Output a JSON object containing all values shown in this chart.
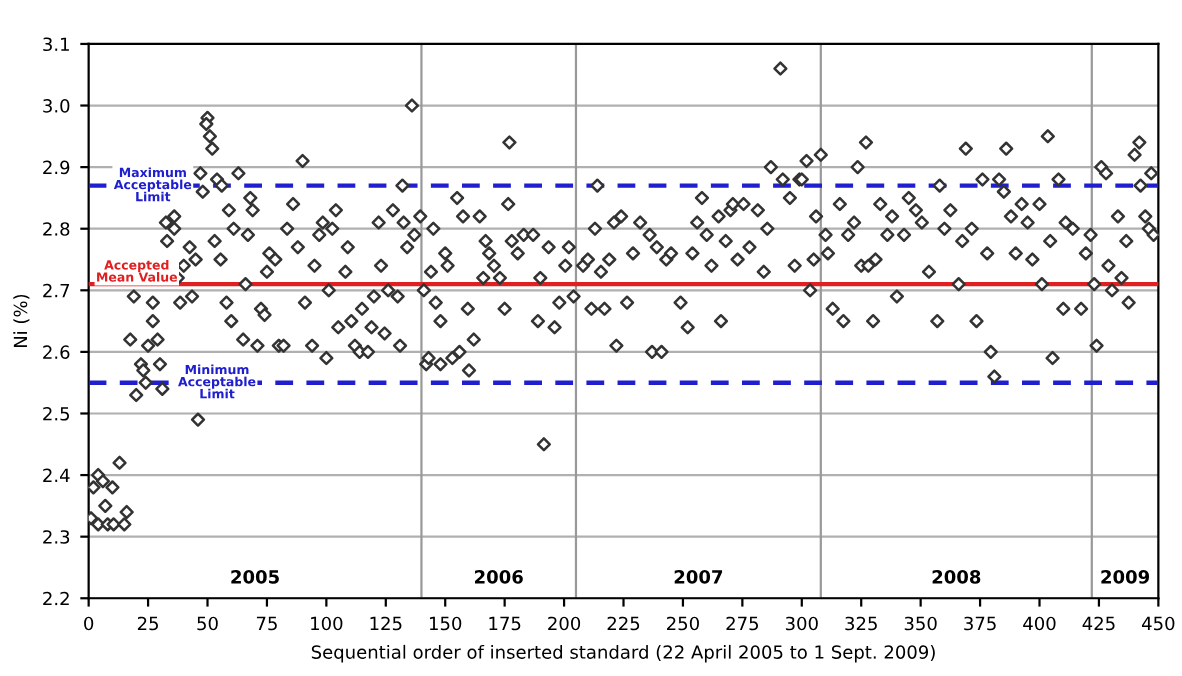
{
  "chart_data": {
    "type": "scatter",
    "xlabel": "Sequential order of inserted standard (22 April 2005 to 1 Sept. 2009)",
    "ylabel": "Ni (%)",
    "xlim": [
      0,
      450
    ],
    "xticks": [
      0,
      25,
      50,
      75,
      100,
      125,
      150,
      175,
      200,
      225,
      250,
      275,
      300,
      325,
      350,
      375,
      400,
      425,
      450
    ],
    "ylim": [
      2.2,
      3.1
    ],
    "yticks": [
      2.2,
      2.3,
      2.4,
      2.5,
      2.6,
      2.7,
      2.8,
      2.9,
      {
        "value": 3.0,
        "label": "3.0"
      },
      3.1
    ],
    "grid": "y",
    "legend": false,
    "marker": "diamond",
    "series": [
      {
        "color": "#333333",
        "x": [
          1,
          2,
          4,
          6,
          4,
          8,
          7,
          10,
          10.5,
          13,
          15,
          16,
          17.5,
          19,
          20,
          22,
          23,
          24,
          25,
          27,
          27,
          29,
          30,
          31,
          32.5,
          33,
          36,
          36,
          37.5,
          38.5,
          40,
          42.5,
          43.5,
          45,
          46,
          47,
          48,
          50,
          49.5,
          51,
          52,
          53,
          54,
          55.5,
          56,
          58,
          59,
          60,
          61,
          63,
          65,
          66,
          67,
          68,
          69,
          71,
          72.5,
          74,
          75,
          76,
          78.5,
          80,
          82,
          83.5,
          86,
          88,
          90,
          91,
          94,
          95,
          97,
          98.5,
          100,
          101,
          102.5,
          104,
          105,
          108,
          109,
          110.5,
          112,
          114,
          115,
          117.5,
          119,
          120,
          122,
          123,
          124.5,
          126,
          128,
          130,
          131,
          132,
          136,
          132.5,
          134,
          137,
          139.5,
          141,
          142,
          143,
          144,
          145,
          146,
          148,
          148,
          150,
          151,
          153,
          155,
          156,
          157.5,
          159.5,
          160,
          162,
          164.5,
          166,
          167,
          168.5,
          170.5,
          173,
          175,
          176.5,
          177,
          178,
          180.5,
          183,
          187,
          189,
          190,
          191.5,
          193.5,
          196,
          198,
          200.5,
          202,
          204,
          208,
          210,
          211.5,
          213,
          214,
          215.5,
          217,
          219,
          221,
          222,
          224,
          226.5,
          229,
          232,
          236,
          237,
          239,
          241,
          243,
          245,
          249,
          252,
          254,
          256,
          258,
          260,
          262,
          265,
          266,
          268,
          270,
          271,
          273,
          275.5,
          278,
          281.5,
          284,
          285.5,
          287,
          291,
          292,
          295,
          297,
          299,
          300,
          302,
          303.5,
          305,
          306,
          308,
          310,
          311,
          313,
          316,
          317.5,
          319.5,
          322,
          323.5,
          325,
          327,
          328,
          330,
          331,
          333,
          336,
          338,
          340,
          343,
          345,
          348,
          350.5,
          353.5,
          357,
          358,
          360,
          362.5,
          366,
          367.5,
          369,
          371.5,
          373.5,
          376,
          378,
          379.5,
          381,
          383,
          385,
          386,
          388,
          390,
          392.5,
          395,
          397,
          400,
          401,
          403.5,
          404.5,
          405.5,
          408,
          410,
          411,
          414,
          417.5,
          419.5,
          421.5,
          423,
          424,
          426,
          428,
          429,
          430.5,
          433,
          434.5,
          436.5,
          437.5,
          440,
          442,
          442.5,
          444.5,
          446,
          447,
          448
        ],
        "values": [
          2.33,
          2.38,
          2.4,
          2.39,
          2.32,
          2.32,
          2.35,
          2.38,
          2.32,
          2.42,
          2.32,
          2.34,
          2.62,
          2.69,
          2.53,
          2.58,
          2.57,
          2.55,
          2.61,
          2.65,
          2.68,
          2.62,
          2.58,
          2.54,
          2.81,
          2.78,
          2.8,
          2.82,
          2.72,
          2.68,
          2.74,
          2.77,
          2.69,
          2.75,
          2.49,
          2.89,
          2.86,
          2.98,
          2.97,
          2.95,
          2.93,
          2.78,
          2.88,
          2.75,
          2.87,
          2.68,
          2.83,
          2.65,
          2.8,
          2.89,
          2.62,
          2.71,
          2.79,
          2.85,
          2.83,
          2.61,
          2.67,
          2.66,
          2.73,
          2.76,
          2.75,
          2.61,
          2.61,
          2.8,
          2.84,
          2.77,
          2.91,
          2.68,
          2.61,
          2.74,
          2.79,
          2.81,
          2.59,
          2.7,
          2.8,
          2.83,
          2.64,
          2.73,
          2.77,
          2.65,
          2.61,
          2.6,
          2.67,
          2.6,
          2.64,
          2.69,
          2.81,
          2.74,
          2.63,
          2.7,
          2.83,
          2.69,
          2.61,
          2.87,
          3.0,
          2.81,
          2.77,
          2.79,
          2.82,
          2.7,
          2.58,
          2.59,
          2.73,
          2.8,
          2.68,
          2.65,
          2.58,
          2.76,
          2.74,
          2.59,
          2.85,
          2.6,
          2.82,
          2.67,
          2.57,
          2.62,
          2.82,
          2.72,
          2.78,
          2.76,
          2.74,
          2.72,
          2.67,
          2.84,
          2.94,
          2.78,
          2.76,
          2.79,
          2.79,
          2.65,
          2.72,
          2.45,
          2.77,
          2.64,
          2.68,
          2.74,
          2.77,
          2.69,
          2.74,
          2.75,
          2.67,
          2.8,
          2.87,
          2.73,
          2.67,
          2.75,
          2.81,
          2.61,
          2.82,
          2.68,
          2.76,
          2.81,
          2.79,
          2.6,
          2.77,
          2.6,
          2.75,
          2.76,
          2.68,
          2.64,
          2.76,
          2.81,
          2.85,
          2.79,
          2.74,
          2.82,
          2.65,
          2.78,
          2.83,
          2.84,
          2.75,
          2.84,
          2.77,
          2.83,
          2.73,
          2.8,
          2.9,
          3.06,
          2.88,
          2.85,
          2.74,
          2.88,
          2.88,
          2.91,
          2.7,
          2.75,
          2.82,
          2.92,
          2.79,
          2.76,
          2.67,
          2.84,
          2.65,
          2.79,
          2.81,
          2.9,
          2.74,
          2.94,
          2.74,
          2.65,
          2.75,
          2.84,
          2.79,
          2.82,
          2.69,
          2.79,
          2.85,
          2.83,
          2.81,
          2.73,
          2.65,
          2.87,
          2.8,
          2.83,
          2.71,
          2.78,
          2.93,
          2.8,
          2.65,
          2.88,
          2.76,
          2.6,
          2.56,
          2.88,
          2.86,
          2.93,
          2.82,
          2.76,
          2.84,
          2.81,
          2.75,
          2.84,
          2.71,
          2.95,
          2.78,
          2.59,
          2.88,
          2.67,
          2.81,
          2.8,
          2.67,
          2.76,
          2.79,
          2.71,
          2.61,
          2.9,
          2.89,
          2.74,
          2.7,
          2.82,
          2.72,
          2.78,
          2.68,
          2.92,
          2.94,
          2.87,
          2.82,
          2.8,
          2.89,
          2.79
        ]
      }
    ],
    "ref_lines": [
      {
        "axis": "y",
        "value": 2.87,
        "label": "Maximum\nAcceptable\nLimit",
        "color": "#1f1fd0",
        "line_style": "dashed"
      },
      {
        "axis": "y",
        "value": 2.71,
        "label": "Accepted\nMean Value",
        "color": "#e02020",
        "line_style": "solid"
      },
      {
        "axis": "y",
        "value": 2.55,
        "label": "Minimum\nAcceptable\nLimit",
        "color": "#1f1fd0",
        "line_style": "dashed"
      },
      {
        "axis": "x",
        "value": 140,
        "label": null,
        "color": "#999999",
        "line_style": "solid"
      },
      {
        "axis": "x",
        "value": 205,
        "label": null,
        "color": "#999999",
        "line_style": "solid"
      },
      {
        "axis": "x",
        "value": 308,
        "label": null,
        "color": "#999999",
        "line_style": "solid"
      },
      {
        "axis": "x",
        "value": 422,
        "label": null,
        "color": "#999999",
        "line_style": "solid"
      }
    ],
    "annotations": [
      "2005",
      "2006",
      "2007",
      "2008",
      "2009"
    ]
  }
}
